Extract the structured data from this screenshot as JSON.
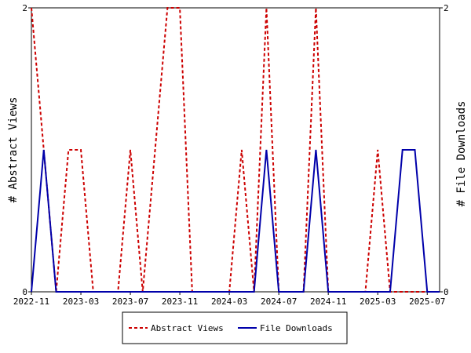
{
  "chart_data": {
    "type": "line",
    "x": [
      "2022-11",
      "2022-12",
      "2023-01",
      "2023-02",
      "2023-03",
      "2023-04",
      "2023-05",
      "2023-06",
      "2023-07",
      "2023-08",
      "2023-09",
      "2023-10",
      "2023-11",
      "2023-12",
      "2024-01",
      "2024-02",
      "2024-03",
      "2024-04",
      "2024-05",
      "2024-06",
      "2024-07",
      "2024-08",
      "2024-09",
      "2024-10",
      "2024-11",
      "2024-12",
      "2025-01",
      "2025-02",
      "2025-03",
      "2025-04",
      "2025-05",
      "2025-06",
      "2025-07",
      "2025-08"
    ],
    "x_tick_labels": [
      "2022-11",
      "2023-03",
      "2023-07",
      "2023-11",
      "2024-03",
      "2024-07",
      "2024-11",
      "2025-03",
      "2025-07"
    ],
    "series": [
      {
        "name": "Abstract Views",
        "color": "#cc0000",
        "style": "dashed",
        "axis": "left",
        "values": [
          2,
          1,
          0,
          1,
          1,
          0,
          0,
          0,
          1,
          0,
          1,
          2,
          2,
          0,
          0,
          0,
          0,
          1,
          0,
          2,
          0,
          0,
          0,
          2,
          0,
          0,
          0,
          0,
          1,
          0,
          0,
          0,
          0,
          0
        ]
      },
      {
        "name": "File Downloads",
        "color": "#0000aa",
        "style": "solid",
        "axis": "right",
        "values": [
          0,
          1,
          0,
          0,
          0,
          0,
          0,
          0,
          0,
          0,
          0,
          0,
          0,
          0,
          0,
          0,
          0,
          0,
          0,
          1,
          0,
          0,
          0,
          1,
          0,
          0,
          0,
          0,
          0,
          0,
          1,
          1,
          0,
          0
        ]
      }
    ],
    "ylabel_left": "# Abstract Views",
    "ylabel_right": "# File Downloads",
    "ylim_left": [
      0,
      2
    ],
    "ylim_right": [
      0,
      2
    ],
    "y_tick_labels_left": [
      "0",
      "2"
    ],
    "y_tick_labels_right": [
      "0",
      "2"
    ],
    "legend_position": "bottom-center",
    "grid": false
  }
}
